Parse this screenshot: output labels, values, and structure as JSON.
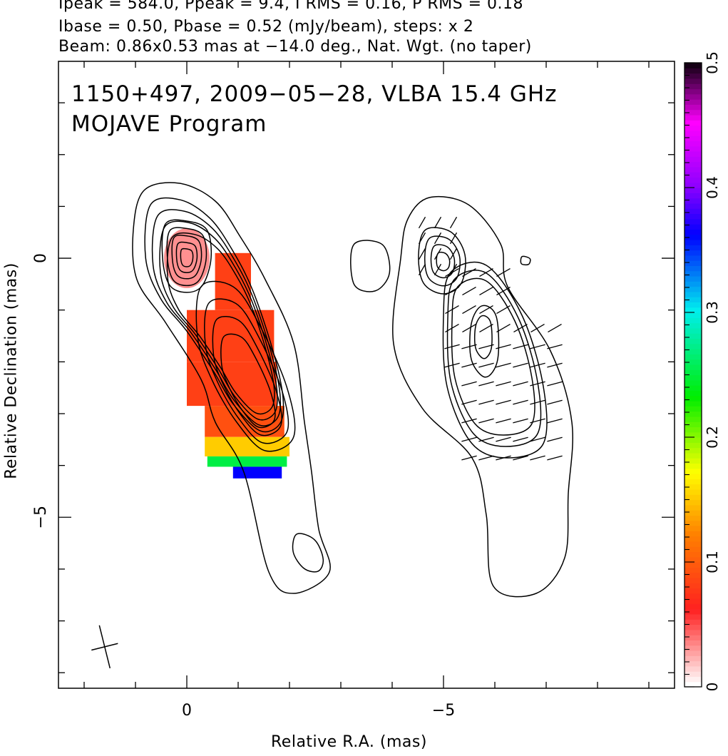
{
  "header": {
    "line1": "Ipeak = 584.0, Ppeak = 9.4, I RMS = 0.16, P RMS = 0.18",
    "line2": "Ibase = 0.50, Pbase = 0.52 (mJy/beam), steps: x 2",
    "line3": "Beam: 0.86x0.53 mas at −14.0 deg., Nat. Wgt. (no taper)"
  },
  "chart_data": {
    "type": "heatmap",
    "title": "1150+497, 2009−05−28, VLBA 15.4 GHz",
    "subtitle": "MOJAVE Program",
    "xlabel": "Relative R.A. (mas)",
    "ylabel": "Relative Declination (mas)",
    "xlim": [
      2.5,
      -9.5
    ],
    "ylim": [
      -8.3,
      3.8
    ],
    "x_ticks": [
      0,
      -5
    ],
    "x_tick_labels": [
      "0",
      "−5"
    ],
    "y_ticks": [
      0,
      -5
    ],
    "y_tick_labels": [
      "0",
      "−5"
    ],
    "colorbar": {
      "range": [
        0,
        0.5
      ],
      "ticks": [
        0,
        0.1,
        0.2,
        0.3,
        0.4,
        0.5
      ],
      "tick_labels": [
        "0",
        "0.1",
        "0.2",
        "0.3",
        "0.4",
        "0.5"
      ],
      "colormap": [
        {
          "v": 0.0,
          "c": "#ffffff"
        },
        {
          "v": 0.06,
          "c": "#ff2020"
        },
        {
          "v": 0.12,
          "c": "#ff8000"
        },
        {
          "v": 0.17,
          "c": "#ffff00"
        },
        {
          "v": 0.23,
          "c": "#00ee00"
        },
        {
          "v": 0.3,
          "c": "#00eeee"
        },
        {
          "v": 0.36,
          "c": "#0000ff"
        },
        {
          "v": 0.4,
          "c": "#9000ff"
        },
        {
          "v": 0.45,
          "c": "#ff00ff"
        },
        {
          "v": 0.5,
          "c": "#000000"
        }
      ]
    },
    "fractional_polarization_region": [
      {
        "y": -0.5,
        "x0": -0.55,
        "x1": -1.25,
        "v": 0.08
      },
      {
        "y": -1.5,
        "x0": 0.0,
        "x1": -1.7,
        "v": 0.08
      },
      {
        "y": -2.5,
        "x0": 0.0,
        "x1": -1.75,
        "v": 0.08
      },
      {
        "y": -3.2,
        "x0": -0.35,
        "x1": -1.9,
        "v": 0.09
      },
      {
        "y": -3.7,
        "x0": -0.35,
        "x1": -2.0,
        "v": 0.15
      },
      {
        "y": -3.95,
        "x0": -0.4,
        "x1": -1.95,
        "v": 0.25
      },
      {
        "y": -4.1,
        "x0": -0.9,
        "x1": -1.85,
        "v": 0.36
      }
    ],
    "core_peak_position": [
      0,
      0
    ],
    "polarized_peak_position": [
      -0.7,
      -1.5
    ],
    "beam": {
      "major_mas": 0.86,
      "minor_mas": 0.53,
      "pa_deg": -14.0
    },
    "left_panel": "Total intensity contours with fractional polarization colour",
    "right_panel": "Polarized intensity contours with EVPA ticks"
  }
}
